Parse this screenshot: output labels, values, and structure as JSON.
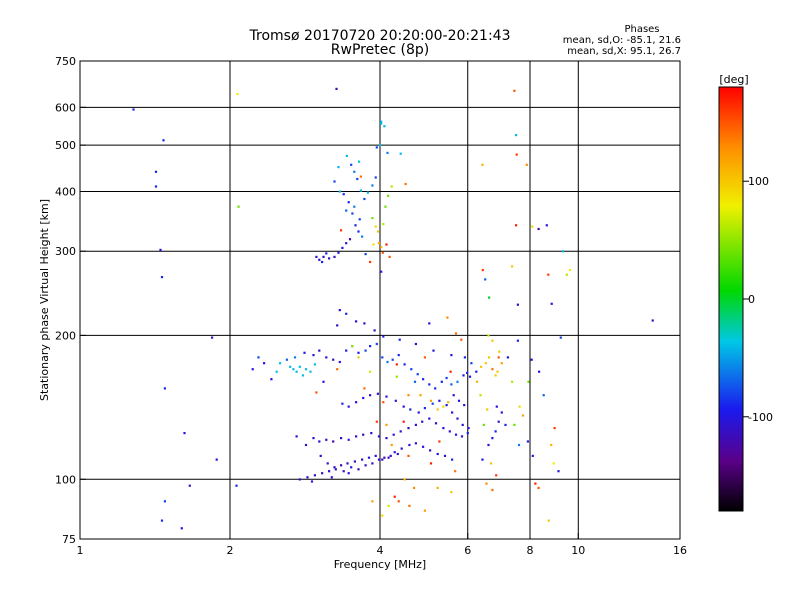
{
  "header": {
    "title_line1": "Tromsø 20170720 20:20:00-20:21:43",
    "title_line2": "RwPretec (8p)",
    "phases_title": "Phases",
    "phases_o": "mean, sd,O: -85.1, 21.6",
    "phases_x": "mean, sd,X:  95.1, 26.7"
  },
  "chart_data": {
    "type": "scatter",
    "xlabel": "Frequency [MHz]",
    "ylabel": "Stationary phase Virtual Height [km]",
    "x_scale": "log",
    "y_scale": "log",
    "xlim": [
      1,
      16
    ],
    "ylim": [
      75,
      750
    ],
    "x_ticks": [
      1,
      2,
      4,
      6,
      8,
      10,
      16
    ],
    "y_ticks": [
      75,
      100,
      200,
      300,
      400,
      500,
      600,
      750
    ],
    "x_grid": [
      2,
      4,
      6,
      8,
      10
    ],
    "y_grid": [
      100,
      200,
      300,
      400,
      500,
      600
    ],
    "colorbar": {
      "label": "[deg]",
      "range": [
        -180,
        180
      ],
      "ticks": [
        -100,
        0,
        100
      ],
      "colormap": "black-purple-blue-cyan-green-yellow-orange-red"
    },
    "points": [
      [
        1.28,
        594,
        -90
      ],
      [
        1.42,
        440,
        -90
      ],
      [
        1.42,
        410,
        -90
      ],
      [
        1.45,
        302,
        -100
      ],
      [
        1.46,
        265,
        -90
      ],
      [
        1.47,
        512,
        -90
      ],
      [
        1.48,
        155,
        -90
      ],
      [
        1.62,
        125,
        -100
      ],
      [
        1.84,
        198,
        -100
      ],
      [
        1.88,
        110,
        -110
      ],
      [
        1.66,
        97,
        -110
      ],
      [
        1.46,
        82,
        -90
      ],
      [
        1.48,
        90,
        -80
      ],
      [
        1.6,
        79,
        -100
      ],
      [
        2.07,
        640,
        80
      ],
      [
        2.08,
        372,
        40
      ],
      [
        2.06,
        97,
        -90
      ],
      [
        3.27,
        656,
        -120
      ],
      [
        3.86,
        90,
        120
      ],
      [
        7.44,
        650,
        150
      ],
      [
        7.5,
        525,
        -40
      ],
      [
        7.52,
        478,
        160
      ],
      [
        7.88,
        455,
        130
      ],
      [
        6.42,
        455,
        110
      ],
      [
        7.5,
        340,
        170
      ],
      [
        8.08,
        338,
        90
      ],
      [
        8.64,
        340,
        -100
      ],
      [
        8.32,
        334,
        -130
      ],
      [
        9.32,
        300,
        -40
      ],
      [
        9.62,
        274,
        80
      ],
      [
        9.48,
        268,
        60
      ],
      [
        8.7,
        268,
        160
      ],
      [
        7.36,
        279,
        100
      ],
      [
        6.43,
        274,
        160
      ],
      [
        6.5,
        262,
        -70
      ],
      [
        6.62,
        240,
        0
      ],
      [
        8.84,
        233,
        -100
      ],
      [
        7.56,
        232,
        -110
      ],
      [
        9.22,
        198,
        -80
      ],
      [
        14.1,
        215,
        -110
      ],
      [
        4.02,
        560,
        -40
      ],
      [
        4.02,
        555,
        -40
      ],
      [
        4.08,
        548,
        -40
      ],
      [
        4.4,
        480,
        -40
      ],
      [
        4.5,
        415,
        140
      ],
      [
        3.63,
        462,
        -40
      ],
      [
        3.43,
        475,
        -40
      ],
      [
        3.3,
        450,
        -40
      ],
      [
        3.24,
        420,
        -80
      ],
      [
        3.32,
        400,
        -40
      ],
      [
        3.38,
        395,
        -90
      ],
      [
        3.46,
        380,
        -90
      ],
      [
        3.52,
        360,
        -80
      ],
      [
        3.57,
        340,
        -90
      ],
      [
        3.62,
        330,
        -90
      ],
      [
        3.48,
        318,
        -120
      ],
      [
        3.42,
        312,
        -100
      ],
      [
        3.36,
        305,
        -100
      ],
      [
        3.3,
        298,
        -100
      ],
      [
        3.24,
        292,
        -110
      ],
      [
        3.16,
        290,
        -110
      ],
      [
        3.08,
        292,
        -110
      ],
      [
        3.02,
        288,
        -100
      ],
      [
        2.98,
        292,
        -110
      ],
      [
        3.06,
        285,
        -90
      ],
      [
        3.12,
        297,
        -90
      ],
      [
        3.42,
        365,
        -70
      ],
      [
        3.55,
        372,
        -60
      ],
      [
        3.64,
        350,
        -80
      ],
      [
        3.68,
        322,
        -60
      ],
      [
        3.86,
        352,
        40
      ],
      [
        3.92,
        338,
        90
      ],
      [
        3.96,
        330,
        100
      ],
      [
        3.98,
        312,
        120
      ],
      [
        4.02,
        306,
        110
      ],
      [
        4.06,
        342,
        60
      ],
      [
        4.1,
        372,
        40
      ],
      [
        4.15,
        392,
        40
      ],
      [
        4.22,
        410,
        60
      ],
      [
        3.92,
        428,
        -80
      ],
      [
        3.86,
        412,
        -60
      ],
      [
        3.78,
        398,
        -40
      ],
      [
        3.72,
        386,
        -80
      ],
      [
        3.66,
        402,
        -40
      ],
      [
        3.6,
        425,
        -80
      ],
      [
        3.55,
        440,
        -60
      ],
      [
        3.5,
        455,
        -80
      ],
      [
        3.88,
        310,
        90
      ],
      [
        3.74,
        296,
        -80
      ],
      [
        3.82,
        285,
        160
      ],
      [
        4.02,
        272,
        -100
      ],
      [
        4.05,
        298,
        150
      ],
      [
        4.12,
        310,
        170
      ],
      [
        4.18,
        292,
        150
      ],
      [
        3.34,
        332,
        160
      ],
      [
        3.66,
        430,
        140
      ],
      [
        3.94,
        495,
        -80
      ],
      [
        4.14,
        482,
        -60
      ],
      [
        4.0,
        500,
        -40
      ],
      [
        3.28,
        210,
        -110
      ],
      [
        3.32,
        226,
        -100
      ],
      [
        3.42,
        222,
        -90
      ],
      [
        3.58,
        214,
        -100
      ],
      [
        3.72,
        212,
        -110
      ],
      [
        3.9,
        205,
        -110
      ],
      [
        4.06,
        199,
        -100
      ],
      [
        4.38,
        196,
        -90
      ],
      [
        4.72,
        192,
        -100
      ],
      [
        5.12,
        186,
        -100
      ],
      [
        5.56,
        182,
        -100
      ],
      [
        5.92,
        180,
        -90
      ],
      [
        6.1,
        175,
        -80
      ],
      [
        5.02,
        212,
        -100
      ],
      [
        5.46,
        218,
        130
      ],
      [
        5.68,
        202,
        140
      ],
      [
        5.82,
        196,
        150
      ],
      [
        2.64,
        172,
        -40
      ],
      [
        2.68,
        170,
        -40
      ],
      [
        2.72,
        168,
        -40
      ],
      [
        2.76,
        172,
        -40
      ],
      [
        2.8,
        165,
        -40
      ],
      [
        2.84,
        170,
        -40
      ],
      [
        2.9,
        168,
        -40
      ],
      [
        2.96,
        174,
        -40
      ],
      [
        2.52,
        175,
        -40
      ],
      [
        2.48,
        168,
        -40
      ],
      [
        2.6,
        178,
        -70
      ],
      [
        2.7,
        180,
        -60
      ],
      [
        2.82,
        184,
        -100
      ],
      [
        2.94,
        182,
        -100
      ],
      [
        3.02,
        186,
        -110
      ],
      [
        3.12,
        180,
        -100
      ],
      [
        3.22,
        178,
        -110
      ],
      [
        3.32,
        176,
        -100
      ],
      [
        3.42,
        186,
        -100
      ],
      [
        3.52,
        190,
        -90
      ],
      [
        3.62,
        184,
        -100
      ],
      [
        3.74,
        186,
        -80
      ],
      [
        3.82,
        190,
        -90
      ],
      [
        3.94,
        192,
        -80
      ],
      [
        4.04,
        180,
        -80
      ],
      [
        4.14,
        176,
        -60
      ],
      [
        4.24,
        178,
        -80
      ],
      [
        4.36,
        182,
        -90
      ],
      [
        4.48,
        174,
        -90
      ],
      [
        4.62,
        170,
        -80
      ],
      [
        4.76,
        166,
        -80
      ],
      [
        4.88,
        162,
        -90
      ],
      [
        5.02,
        158,
        -90
      ],
      [
        5.16,
        155,
        -90
      ],
      [
        5.32,
        160,
        -90
      ],
      [
        5.44,
        163,
        -80
      ],
      [
        5.56,
        158,
        -70
      ],
      [
        5.72,
        160,
        -60
      ],
      [
        5.88,
        165,
        -100
      ],
      [
        5.98,
        167,
        -90
      ],
      [
        6.06,
        164,
        -100
      ],
      [
        6.24,
        168,
        -90
      ],
      [
        6.38,
        172,
        100
      ],
      [
        6.52,
        175,
        100
      ],
      [
        6.62,
        180,
        100
      ],
      [
        6.72,
        170,
        140
      ],
      [
        6.82,
        165,
        100
      ],
      [
        6.88,
        168,
        100
      ],
      [
        6.94,
        185,
        100
      ],
      [
        6.72,
        195,
        100
      ],
      [
        6.6,
        200,
        60
      ],
      [
        6.92,
        180,
        150
      ],
      [
        7.02,
        175,
        120
      ],
      [
        4.32,
        164,
        50
      ],
      [
        4.56,
        150,
        130
      ],
      [
        4.82,
        150,
        120
      ],
      [
        5.06,
        146,
        120
      ],
      [
        5.22,
        140,
        100
      ],
      [
        5.36,
        142,
        90
      ],
      [
        5.48,
        145,
        110
      ],
      [
        5.62,
        150,
        -100
      ],
      [
        5.76,
        146,
        -100
      ],
      [
        5.9,
        143,
        -100
      ],
      [
        3.36,
        144,
        -90
      ],
      [
        3.46,
        142,
        -100
      ],
      [
        3.58,
        145,
        -100
      ],
      [
        3.7,
        148,
        -100
      ],
      [
        3.82,
        150,
        -110
      ],
      [
        3.96,
        151,
        -100
      ],
      [
        4.12,
        149,
        -100
      ],
      [
        4.3,
        146,
        -110
      ],
      [
        4.46,
        142,
        -100
      ],
      [
        4.6,
        140,
        -90
      ],
      [
        4.78,
        138,
        -100
      ],
      [
        4.92,
        141,
        -90
      ],
      [
        5.1,
        144,
        -80
      ],
      [
        5.26,
        146,
        -100
      ],
      [
        5.44,
        143,
        -100
      ],
      [
        5.58,
        138,
        -100
      ],
      [
        5.72,
        134,
        -110
      ],
      [
        5.86,
        130,
        -100
      ],
      [
        6.02,
        128,
        -100
      ],
      [
        3.02,
        120,
        -110
      ],
      [
        3.12,
        121,
        -110
      ],
      [
        3.22,
        120,
        -120
      ],
      [
        3.34,
        122,
        -110
      ],
      [
        3.46,
        121,
        -100
      ],
      [
        3.58,
        123,
        -110
      ],
      [
        3.7,
        124,
        -120
      ],
      [
        3.84,
        125,
        -110
      ],
      [
        3.98,
        123,
        -100
      ],
      [
        4.12,
        122,
        -110
      ],
      [
        4.26,
        124,
        -100
      ],
      [
        4.4,
        126,
        -110
      ],
      [
        4.56,
        128,
        -110
      ],
      [
        4.72,
        130,
        -100
      ],
      [
        4.86,
        132,
        -110
      ],
      [
        5.02,
        134,
        -100
      ],
      [
        5.18,
        131,
        -110
      ],
      [
        5.36,
        128,
        -100
      ],
      [
        5.52,
        126,
        -110
      ],
      [
        5.68,
        124,
        -100
      ],
      [
        5.84,
        123,
        -100
      ],
      [
        6.0,
        125,
        -90
      ],
      [
        2.84,
        118,
        -110
      ],
      [
        2.94,
        122,
        -100
      ],
      [
        2.72,
        123,
        -110
      ],
      [
        3.04,
        112,
        -110
      ],
      [
        3.14,
        108,
        -110
      ],
      [
        3.24,
        106,
        -110
      ],
      [
        3.34,
        107,
        -120
      ],
      [
        3.44,
        108,
        -110
      ],
      [
        3.56,
        109,
        -110
      ],
      [
        3.68,
        110,
        -110
      ],
      [
        3.8,
        111,
        -100
      ],
      [
        3.92,
        112,
        -100
      ],
      [
        4.04,
        110,
        -110
      ],
      [
        4.16,
        111,
        -110
      ],
      [
        4.28,
        114,
        -100
      ],
      [
        4.42,
        116,
        -110
      ],
      [
        4.58,
        118,
        -100
      ],
      [
        4.72,
        119,
        -110
      ],
      [
        4.88,
        117,
        -100
      ],
      [
        5.04,
        115,
        -110
      ],
      [
        5.22,
        113,
        -100
      ],
      [
        5.4,
        112,
        -100
      ],
      [
        5.58,
        110,
        -90
      ],
      [
        2.76,
        100,
        -110
      ],
      [
        2.86,
        101,
        -100
      ],
      [
        2.96,
        102,
        -110
      ],
      [
        3.06,
        103,
        -110
      ],
      [
        3.16,
        104,
        -100
      ],
      [
        3.26,
        105,
        -110
      ],
      [
        3.38,
        104,
        -110
      ],
      [
        3.5,
        106,
        -100
      ],
      [
        3.62,
        105,
        -120
      ],
      [
        3.74,
        107,
        -110
      ],
      [
        3.86,
        108,
        -110
      ],
      [
        3.98,
        110,
        -110
      ],
      [
        4.08,
        111,
        -120
      ],
      [
        4.2,
        112,
        -110
      ],
      [
        4.34,
        113,
        -110
      ],
      [
        2.92,
        99,
        -100
      ],
      [
        3.2,
        101,
        -100
      ],
      [
        3.46,
        103,
        -100
      ],
      [
        4.12,
        130,
        120
      ],
      [
        4.22,
        118,
        120
      ],
      [
        3.82,
        168,
        70
      ],
      [
        4.32,
        174,
        170
      ],
      [
        3.72,
        155,
        140
      ],
      [
        4.06,
        145,
        150
      ],
      [
        3.94,
        132,
        160
      ],
      [
        4.46,
        132,
        170
      ],
      [
        4.56,
        112,
        150
      ],
      [
        5.26,
        120,
        160
      ],
      [
        5.06,
        108,
        170
      ],
      [
        5.66,
        104,
        140
      ],
      [
        4.7,
        160,
        -70
      ],
      [
        5.54,
        168,
        170
      ],
      [
        6.26,
        160,
        110
      ],
      [
        6.36,
        150,
        60
      ],
      [
        6.56,
        140,
        100
      ],
      [
        6.46,
        130,
        40
      ],
      [
        6.6,
        118,
        -100
      ],
      [
        6.72,
        122,
        -100
      ],
      [
        6.82,
        126,
        -90
      ],
      [
        6.92,
        132,
        -110
      ],
      [
        7.02,
        138,
        -100
      ],
      [
        7.14,
        130,
        -90
      ],
      [
        6.86,
        142,
        -100
      ],
      [
        6.42,
        110,
        -100
      ],
      [
        6.68,
        108,
        100
      ],
      [
        6.54,
        98,
        130
      ],
      [
        6.72,
        95,
        140
      ],
      [
        6.84,
        102,
        160
      ],
      [
        7.44,
        130,
        40
      ],
      [
        7.62,
        142,
        90
      ],
      [
        7.74,
        136,
        120
      ],
      [
        7.92,
        120,
        -100
      ],
      [
        8.1,
        112,
        -100
      ],
      [
        8.2,
        98,
        170
      ],
      [
        8.32,
        96,
        150
      ],
      [
        8.82,
        118,
        110
      ],
      [
        8.92,
        108,
        80
      ],
      [
        9.12,
        104,
        -100
      ],
      [
        7.22,
        180,
        -100
      ],
      [
        7.56,
        195,
        -90
      ],
      [
        8.06,
        178,
        -100
      ],
      [
        8.34,
        168,
        -100
      ],
      [
        8.52,
        150,
        -70
      ],
      [
        8.96,
        128,
        160
      ],
      [
        7.94,
        160,
        40
      ],
      [
        7.36,
        160,
        60
      ],
      [
        7.6,
        118,
        -60
      ],
      [
        8.72,
        82,
        100
      ],
      [
        4.48,
        100,
        110
      ],
      [
        4.68,
        96,
        130
      ],
      [
        4.28,
        92,
        170
      ],
      [
        4.58,
        88,
        140
      ],
      [
        4.92,
        86,
        120
      ],
      [
        5.22,
        96,
        110
      ],
      [
        5.56,
        94,
        100
      ],
      [
        4.36,
        90,
        150
      ],
      [
        4.04,
        84,
        90
      ],
      [
        4.16,
        88,
        70
      ],
      [
        4.92,
        180,
        150
      ],
      [
        3.62,
        180,
        100
      ],
      [
        3.28,
        170,
        140
      ],
      [
        2.98,
        152,
        150
      ],
      [
        3.08,
        160,
        -100
      ],
      [
        2.34,
        175,
        -100
      ],
      [
        2.22,
        170,
        -100
      ],
      [
        2.42,
        162,
        -100
      ],
      [
        2.28,
        180,
        -80
      ],
      [
        3.52,
        190,
        50
      ]
    ]
  }
}
